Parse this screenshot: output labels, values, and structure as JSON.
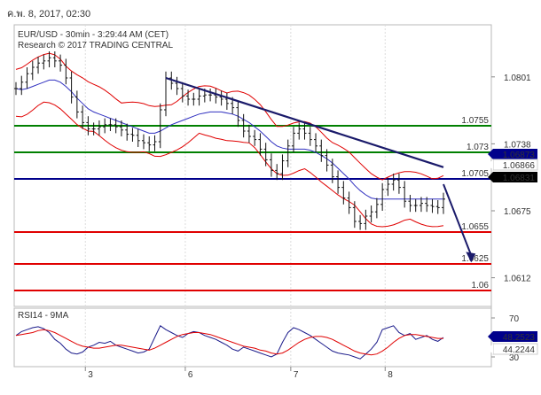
{
  "header": {
    "datetime": "ค.พ. 8, 2017, 02:30"
  },
  "chart_data": {
    "type": "line",
    "title": "EUR/USD - 30min - 3:29:44 AM (CET)",
    "subtitle": "Research © 2017 TRADING CENTRAL",
    "x_ticks": [
      "3",
      "6",
      "7",
      "8"
    ],
    "y_ticks": [
      "1.0801",
      "1.0738",
      "1.0675",
      "1.0612"
    ],
    "ylim": [
      1.0585,
      1.085
    ],
    "levels": [
      {
        "label": "1.0755",
        "value": 1.0755,
        "color": "#008000"
      },
      {
        "label": "1.073",
        "value": 1.073,
        "color": "#008000"
      },
      {
        "label": "1.0705",
        "value": 1.0705,
        "color": "#00008b"
      },
      {
        "label": "1.0655",
        "value": 1.0655,
        "color": "#e00000"
      },
      {
        "label": "1.0625",
        "value": 1.0625,
        "color": "#e00000"
      },
      {
        "label": "1.06",
        "value": 1.06,
        "color": "#e00000"
      }
    ],
    "price_badges": [
      {
        "label": "1.06873",
        "value": 1.06873,
        "bg": "#00008b",
        "fg": "#ffffff"
      },
      {
        "label": "1.06866",
        "value": 1.06866,
        "bg": "#ffffff",
        "fg": "#e00000"
      },
      {
        "label": "1.06831",
        "value": 1.06831,
        "bg": "#000000",
        "fg": "#ffffff"
      }
    ],
    "close": [
      1.079,
      1.0796,
      1.0804,
      1.081,
      1.0814,
      1.0816,
      1.0819,
      1.0816,
      1.0812,
      1.08,
      1.0782,
      1.0768,
      1.0758,
      1.0752,
      1.0752,
      1.0754,
      1.0756,
      1.0756,
      1.0754,
      1.0751,
      1.0747,
      1.0746,
      1.0741,
      1.0739,
      1.0737,
      1.074,
      1.077,
      1.08,
      1.0795,
      1.079,
      1.0783,
      1.078,
      1.078,
      1.0783,
      1.0784,
      1.0784,
      1.0782,
      1.078,
      1.0776,
      1.0772,
      1.076,
      1.075,
      1.0745,
      1.0742,
      1.0733,
      1.0723,
      1.0713,
      1.071,
      1.0722,
      1.0736,
      1.0748,
      1.0752,
      1.0748,
      1.0742,
      1.0736,
      1.0727,
      1.0718,
      1.0707,
      1.0697,
      1.0687,
      1.0678,
      1.0665,
      1.0663,
      1.067,
      1.0674,
      1.0681,
      1.0695,
      1.07,
      1.0704,
      1.0697,
      1.0684,
      1.068,
      1.068,
      1.0682,
      1.068,
      1.0679,
      1.0678,
      1.0686
    ],
    "moving_average": [
      1.079,
      1.0789,
      1.079,
      1.0792,
      1.0794,
      1.0796,
      1.0798,
      1.0798,
      1.0796,
      1.0792,
      1.0787,
      1.0781,
      1.0776,
      1.0771,
      1.0768,
      1.0766,
      1.0764,
      1.0762,
      1.076,
      1.0758,
      1.0756,
      1.0754,
      1.0752,
      1.075,
      1.0748,
      1.0748,
      1.075,
      1.0753,
      1.0756,
      1.0758,
      1.076,
      1.0762,
      1.0764,
      1.0766,
      1.0767,
      1.0768,
      1.0768,
      1.0768,
      1.0767,
      1.0766,
      1.0764,
      1.0761,
      1.0758,
      1.0754,
      1.075,
      1.0745,
      1.074,
      1.0736,
      1.0734,
      1.0733,
      1.0733,
      1.0733,
      1.0733,
      1.0732,
      1.073,
      1.0727,
      1.0724,
      1.072,
      1.0715,
      1.071,
      1.0705,
      1.0699,
      1.0694,
      1.069,
      1.0687,
      1.0686,
      1.0686,
      1.0686,
      1.0686,
      1.0686,
      1.0686,
      1.0686,
      1.0686,
      1.0686,
      1.0686,
      1.0686,
      1.0686,
      1.0686
    ],
    "trendline": [
      [
        27,
        1.08
      ],
      [
        77,
        1.0716
      ]
    ],
    "projection": [
      [
        77,
        1.07
      ],
      [
        82,
        1.0628
      ]
    ],
    "rsi": {
      "label": "RSI14 - 9MA",
      "y_ticks": [
        "70",
        "30"
      ],
      "ylim": [
        20,
        80
      ],
      "values": [
        52,
        56,
        58,
        60,
        61,
        59,
        55,
        48,
        44,
        38,
        34,
        33,
        35,
        40,
        42,
        45,
        44,
        46,
        42,
        40,
        38,
        36,
        34,
        35,
        38,
        50,
        62,
        58,
        55,
        52,
        50,
        54,
        56,
        55,
        52,
        50,
        48,
        45,
        42,
        38,
        36,
        40,
        38,
        36,
        34,
        32,
        30,
        33,
        45,
        55,
        60,
        58,
        55,
        52,
        48,
        44,
        40,
        36,
        34,
        33,
        32,
        30,
        28,
        33,
        38,
        45,
        58,
        60,
        62,
        55,
        52,
        54,
        48,
        50,
        52,
        48,
        46,
        50
      ],
      "ma": [
        52,
        53,
        54,
        55,
        57,
        58,
        57,
        55,
        52,
        49,
        46,
        43,
        41,
        40,
        39,
        39,
        40,
        41,
        42,
        42,
        41,
        40,
        39,
        38,
        37,
        39,
        42,
        45,
        48,
        51,
        53,
        54,
        55,
        55,
        54,
        53,
        51,
        49,
        47,
        45,
        43,
        41,
        40,
        39,
        37,
        36,
        34,
        33,
        34,
        37,
        41,
        45,
        48,
        50,
        51,
        51,
        50,
        48,
        45,
        42,
        39,
        36,
        34,
        33,
        32,
        33,
        36,
        40,
        45,
        49,
        52,
        53,
        53,
        52,
        51,
        50,
        49,
        49
      ],
      "badges": [
        {
          "label": "48.2523",
          "value": 48.25,
          "bg": "#00008b",
          "fg": "#ffffff"
        },
        {
          "label": "44.2244",
          "value": 44.22,
          "bg": "#ffffff",
          "fg": "#e00000"
        }
      ]
    }
  }
}
